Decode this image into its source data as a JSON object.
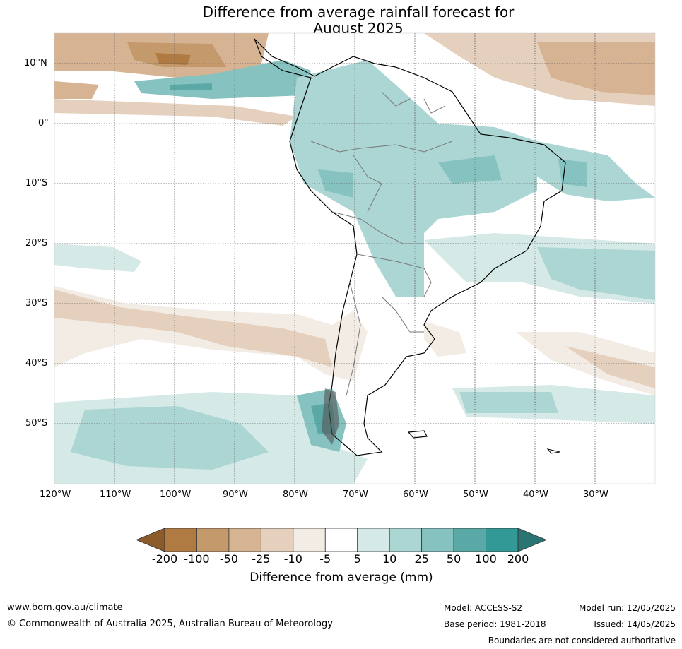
{
  "title_line1": "Difference from average rainfall forecast for",
  "title_line2": "August 2025",
  "lat_labels": [
    "10°N",
    "0°",
    "10°S",
    "20°S",
    "30°S",
    "40°S",
    "50°S"
  ],
  "lon_labels": [
    "120°W",
    "110°W",
    "100°W",
    "90°W",
    "80°W",
    "70°W",
    "60°W",
    "50°W",
    "40°W",
    "30°W"
  ],
  "colorbar": {
    "label": "Difference from average (mm)",
    "ticks": [
      "-200",
      "-100",
      "-50",
      "-25",
      "-10",
      "-5",
      "5",
      "10",
      "25",
      "50",
      "100",
      "200"
    ],
    "colors": [
      "#8c5a2b",
      "#b07b43",
      "#c49a6d",
      "#d6b393",
      "#e5d0be",
      "#f3ece5",
      "#ffffff",
      "#d5e9e7",
      "#acd6d4",
      "#85c2c0",
      "#5ba9a7",
      "#339996",
      "#2a7473"
    ]
  },
  "footer": {
    "url": "www.bom.gov.au/climate",
    "copyright": "© Commonwealth of Australia 2025, Australian Bureau of Meteorology",
    "model": "Model: ACCESS-S2",
    "base_period": "Base period: 1981-2018",
    "model_run": "Model run: 12/05/2025",
    "issued": "Issued: 14/05/2025",
    "disclaimer": "Boundaries are not considered authoritative"
  }
}
